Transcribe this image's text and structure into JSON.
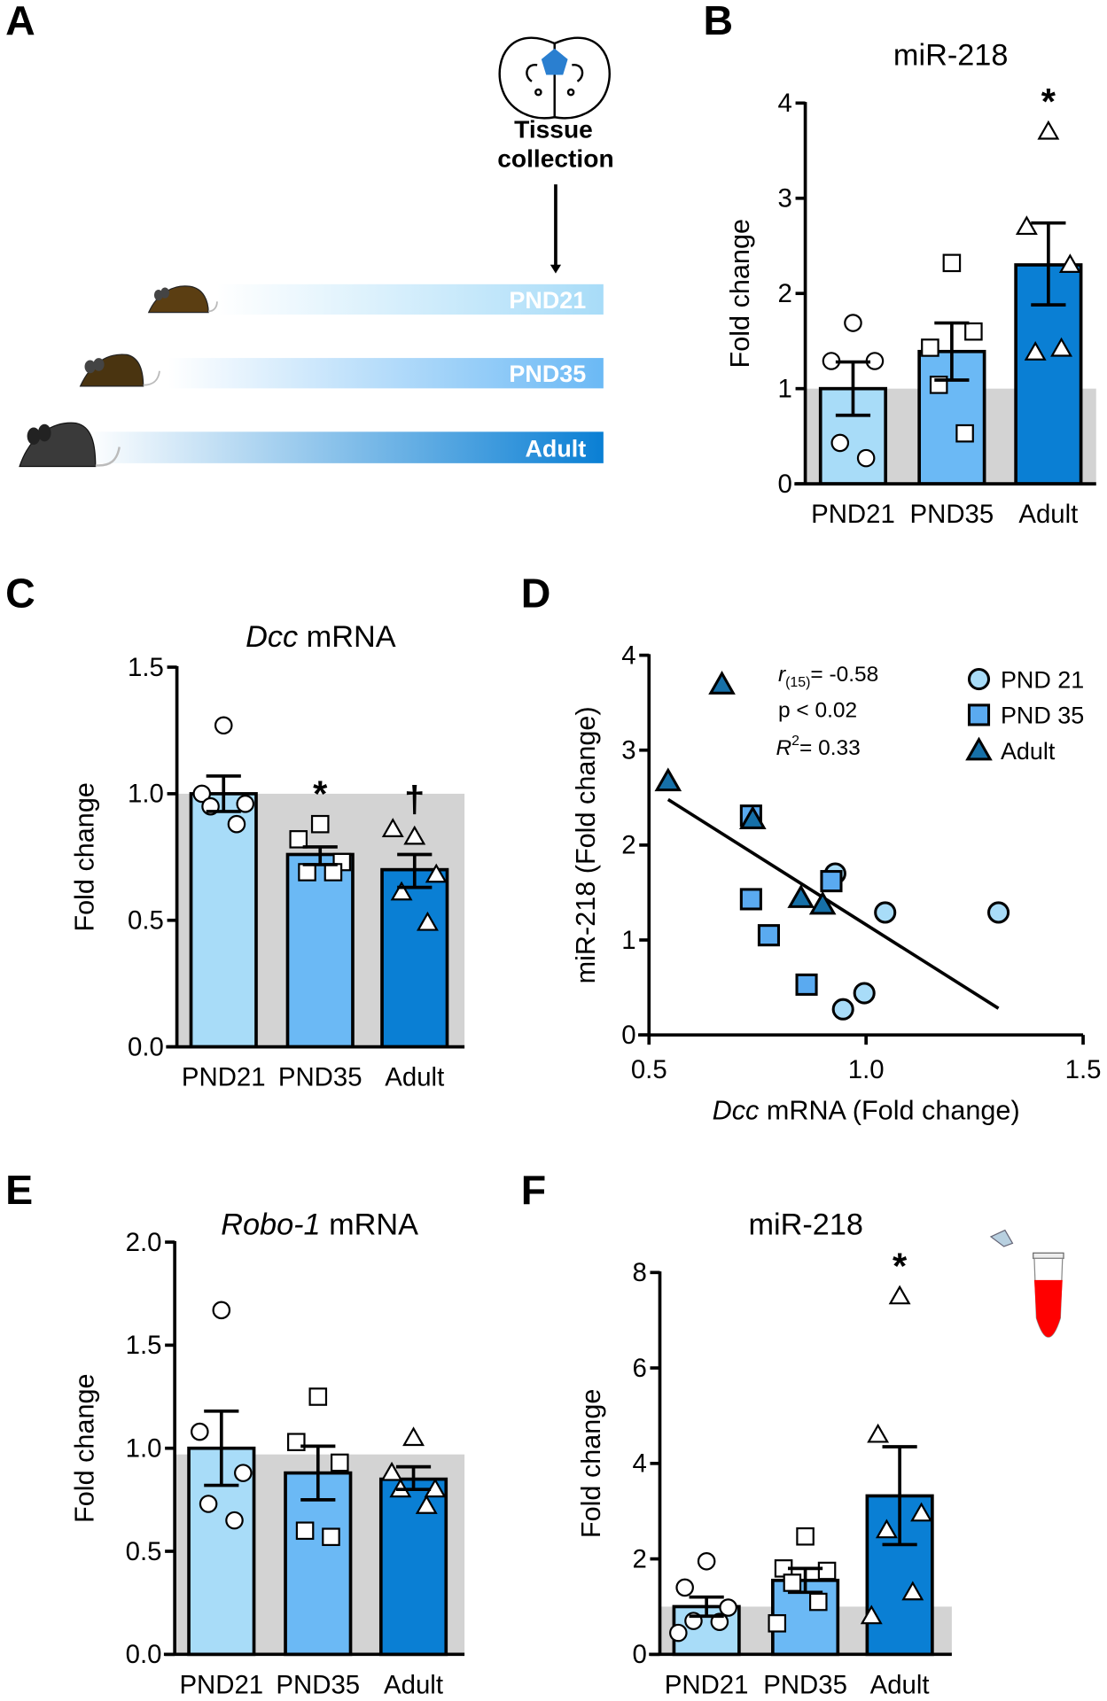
{
  "panel_labels": {
    "a": "A",
    "b": "B",
    "c": "C",
    "d": "D",
    "e": "E",
    "f": "F"
  },
  "timeline": {
    "event_line1": "Tissue",
    "event_line2": "collection",
    "groups": [
      "PND21",
      "PND35",
      "Adult"
    ],
    "colors": [
      "#a8dcf8",
      "#6bb9f5",
      "#0a7fd4"
    ]
  },
  "chart_data": [
    {
      "id": "B",
      "type": "bar",
      "title": "miR-218",
      "title_italic": "",
      "ylabel": "Fold change",
      "ylim": [
        0,
        4
      ],
      "yticks": [
        "0",
        "1",
        "2",
        "3",
        "4"
      ],
      "ytick_values": [
        0,
        1,
        2,
        3,
        4
      ],
      "reference_band": 1.0,
      "categories": [
        "PND21",
        "PND35",
        "Adult"
      ],
      "colors": [
        "#a8dcf8",
        "#6bb9f5",
        "#0a7fd4"
      ],
      "markers": [
        "circle",
        "square",
        "triangle"
      ],
      "means": [
        1.0,
        1.39,
        2.3
      ],
      "sem_low": [
        0.72,
        1.09,
        1.88
      ],
      "sem_high": [
        1.28,
        1.69,
        2.74
      ],
      "points": [
        [
          1.69,
          1.29,
          1.29,
          0.43,
          0.27
        ],
        [
          2.32,
          1.43,
          1.6,
          1.04,
          0.53
        ],
        [
          3.7,
          2.7,
          2.3,
          1.38,
          1.42
        ]
      ],
      "annotations": [
        "",
        "",
        "*"
      ]
    },
    {
      "id": "C",
      "type": "bar",
      "title": " mRNA",
      "title_italic": "Dcc",
      "ylabel": "Fold change",
      "ylim": [
        0,
        1.5
      ],
      "yticks": [
        "0.0",
        "0.5",
        "1.0",
        "1.5"
      ],
      "ytick_values": [
        0,
        0.5,
        1.0,
        1.5
      ],
      "reference_band": 1.0,
      "categories": [
        "PND21",
        "PND35",
        "Adult"
      ],
      "colors": [
        "#a8dcf8",
        "#6bb9f5",
        "#0a7fd4"
      ],
      "markers": [
        "circle",
        "square",
        "triangle"
      ],
      "means": [
        1.0,
        0.76,
        0.7
      ],
      "sem_low": [
        0.93,
        0.72,
        0.63
      ],
      "sem_high": [
        1.07,
        0.79,
        0.76
      ],
      "points": [
        [
          1.27,
          1.0,
          0.96,
          0.95,
          0.88
        ],
        [
          0.88,
          0.82,
          0.73,
          0.69,
          0.69
        ],
        [
          0.83,
          0.86,
          0.68,
          0.61,
          0.49
        ]
      ],
      "annotations": [
        "",
        "*",
        "†"
      ]
    },
    {
      "id": "D",
      "type": "scatter",
      "xlabel_italic": "Dcc",
      "xlabel": "mRNA (Fold change)",
      "ylabel": "miR-218 (Fold change)",
      "xlim": [
        0.5,
        1.5
      ],
      "ylim": [
        0,
        4
      ],
      "xticks": [
        "0.5",
        "1.0",
        "1.5"
      ],
      "xtick_values": [
        0.5,
        1.0,
        1.5
      ],
      "yticks": [
        "0",
        "1",
        "2",
        "3",
        "4"
      ],
      "ytick_values": [
        0,
        1,
        2,
        3,
        4
      ],
      "series": [
        {
          "name": "PND 21",
          "marker": "circle",
          "color": "#a8dcf8",
          "x": [
            0.929,
            1.044,
            1.305,
            0.996,
            0.947
          ],
          "y": [
            1.7,
            1.29,
            1.29,
            0.44,
            0.27
          ]
        },
        {
          "name": "PND 35",
          "marker": "square",
          "color": "#5aaaf0",
          "x": [
            0.735,
            0.735,
            0.776,
            0.863,
            0.92
          ],
          "y": [
            2.31,
            1.43,
            1.05,
            0.53,
            1.62
          ]
        },
        {
          "name": "Adult",
          "marker": "triangle",
          "color": "#1670a8",
          "x": [
            0.668,
            0.544,
            0.739,
            0.85,
            0.9
          ],
          "y": [
            3.69,
            2.67,
            2.27,
            1.44,
            1.37
          ]
        }
      ],
      "fit_line": {
        "x": [
          0.544,
          1.305
        ],
        "y": [
          2.48,
          0.28
        ]
      },
      "stats": {
        "r_label": "r",
        "r_sub": "(15)",
        "r_value": "= -0.58",
        "p": "p < 0.02",
        "r2_label": "R",
        "r2_sup": "2",
        "r2_value": "= 0.33"
      },
      "legend_position": "top-right"
    },
    {
      "id": "E",
      "type": "bar",
      "title": " mRNA",
      "title_italic": "Robo-1",
      "ylabel": "Fold change",
      "ylim": [
        0,
        2.0
      ],
      "yticks": [
        "0.0",
        "0.5",
        "1.0",
        "1.5",
        "2.0"
      ],
      "ytick_values": [
        0,
        0.5,
        1.0,
        1.5,
        2.0
      ],
      "reference_band": 0.97,
      "categories": [
        "PND21",
        "PND35",
        "Adult"
      ],
      "colors": [
        "#a8dcf8",
        "#6bb9f5",
        "#0a7fd4"
      ],
      "markers": [
        "circle",
        "square",
        "triangle"
      ],
      "means": [
        1.0,
        0.88,
        0.85
      ],
      "sem_low": [
        0.82,
        0.75,
        0.8
      ],
      "sem_high": [
        1.18,
        1.01,
        0.91
      ],
      "points": [
        [
          1.67,
          1.08,
          0.88,
          0.73,
          0.65
        ],
        [
          1.25,
          1.03,
          0.93,
          0.6,
          0.57
        ],
        [
          1.05,
          0.88,
          0.8,
          0.8,
          0.72
        ]
      ],
      "annotations": [
        "",
        "",
        ""
      ]
    },
    {
      "id": "F",
      "type": "bar",
      "title": "miR-218",
      "title_italic": "",
      "ylabel": "Fold change",
      "ylim": [
        0,
        8
      ],
      "yticks": [
        "0",
        "2",
        "4",
        "6",
        "8"
      ],
      "ytick_values": [
        0,
        2,
        4,
        6,
        8
      ],
      "reference_band": 1.0,
      "categories": [
        "PND21",
        "PND35",
        "Adult"
      ],
      "colors": [
        "#a8dcf8",
        "#6bb9f5",
        "#0a7fd4"
      ],
      "markers": [
        "circle",
        "square",
        "triangle"
      ],
      "means": [
        1.0,
        1.55,
        3.32
      ],
      "sem_low": [
        0.8,
        1.3,
        2.3
      ],
      "sem_high": [
        1.2,
        1.8,
        4.35
      ],
      "points": [
        [
          1.95,
          1.4,
          0.98,
          0.7,
          0.68,
          0.45
        ],
        [
          2.47,
          1.8,
          1.75,
          1.5,
          1.1,
          0.65
        ],
        [
          7.5,
          4.6,
          2.95,
          2.6,
          1.3,
          0.8
        ]
      ],
      "annotations": [
        "",
        "",
        "*"
      ]
    }
  ]
}
